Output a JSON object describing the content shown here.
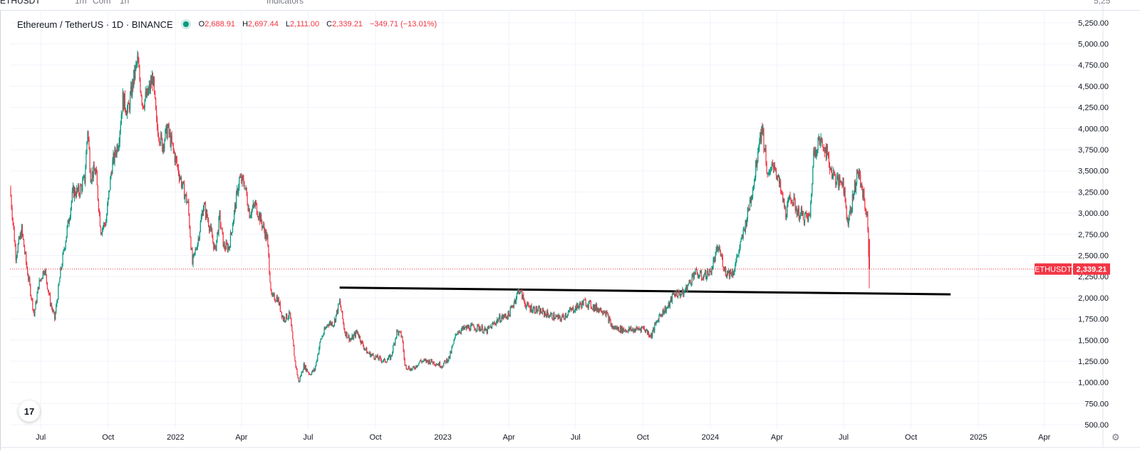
{
  "toolbar": {
    "symbol": "ETHUSDT",
    "interval": "1m",
    "compare": "Com",
    "tf": "1h",
    "indicators": "Indicators",
    "right_value": "5,25"
  },
  "legend": {
    "symbol_text": "Ethereum / TetherUS · 1D · BINANCE",
    "o_label": "O",
    "o_value": "2,688.91",
    "h_label": "H",
    "h_value": "2,697.44",
    "l_label": "L",
    "l_value": "2,111.00",
    "c_label": "C",
    "c_value": "2,339.21",
    "change": "−349.71 (−13.01%)"
  },
  "price_label": {
    "symbol": "ETHUSDT",
    "value": "2,339.21"
  },
  "colors": {
    "up": "#089981",
    "down": "#f23645",
    "grid": "#f0f3fa",
    "axis_text": "#131722",
    "trendline": "#000000"
  },
  "chart_data": {
    "type": "candlestick",
    "title": "Ethereum / TetherUS · 1D · BINANCE",
    "y_axis": {
      "ticks": [
        "5,250.00",
        "5,000.00",
        "4,750.00",
        "4,500.00",
        "4,250.00",
        "4,000.00",
        "3,750.00",
        "3,500.00",
        "3,250.00",
        "3,000.00",
        "2,750.00",
        "2,500.00",
        "2,250.00",
        "2,000.00",
        "1,750.00",
        "1,500.00",
        "1,250.00",
        "1,000.00",
        "750.00",
        "500.00"
      ],
      "tick_values": [
        5250,
        5000,
        4750,
        4500,
        4250,
        4000,
        3750,
        3500,
        3250,
        3000,
        2750,
        2500,
        2250,
        2000,
        1750,
        1500,
        1250,
        1000,
        750,
        500
      ],
      "range": [
        450,
        5400
      ],
      "position": "right"
    },
    "x_axis": {
      "labels": [
        "Jul",
        "Oct",
        "2022",
        "Apr",
        "Jul",
        "Oct",
        "2023",
        "Apr",
        "Jul",
        "Oct",
        "2024",
        "Apr",
        "Jul",
        "Oct",
        "2025",
        "Apr"
      ],
      "label_dates": [
        "2021-07-01",
        "2021-10-01",
        "2022-01-01",
        "2022-04-01",
        "2022-07-01",
        "2022-10-01",
        "2023-01-01",
        "2023-04-01",
        "2023-07-01",
        "2023-10-01",
        "2024-01-01",
        "2024-04-01",
        "2024-07-01",
        "2024-10-01",
        "2025-01-01",
        "2025-04-01"
      ],
      "range": [
        "2021-05-20",
        "2025-06-20"
      ]
    },
    "series": [
      {
        "interval": "daily",
        "path": [
          [
            "2021-05-20",
            3300
          ],
          [
            "2021-05-28",
            2500
          ],
          [
            "2021-06-05",
            2800
          ],
          [
            "2021-06-12",
            2350
          ],
          [
            "2021-06-22",
            1800
          ],
          [
            "2021-06-28",
            2150
          ],
          [
            "2021-07-06",
            2350
          ],
          [
            "2021-07-14",
            1950
          ],
          [
            "2021-07-20",
            1750
          ],
          [
            "2021-07-28",
            2300
          ],
          [
            "2021-08-05",
            2750
          ],
          [
            "2021-08-14",
            3250
          ],
          [
            "2021-08-22",
            3250
          ],
          [
            "2021-08-30",
            3400
          ],
          [
            "2021-09-03",
            4000
          ],
          [
            "2021-09-07",
            3450
          ],
          [
            "2021-09-14",
            3500
          ],
          [
            "2021-09-21",
            2800
          ],
          [
            "2021-09-28",
            2900
          ],
          [
            "2021-10-06",
            3550
          ],
          [
            "2021-10-15",
            3850
          ],
          [
            "2021-10-21",
            4350
          ],
          [
            "2021-10-28",
            4200
          ],
          [
            "2021-11-04",
            4550
          ],
          [
            "2021-11-10",
            4800
          ],
          [
            "2021-11-17",
            4300
          ],
          [
            "2021-11-24",
            4400
          ],
          [
            "2021-12-01",
            4600
          ],
          [
            "2021-12-06",
            4050
          ],
          [
            "2021-12-14",
            3800
          ],
          [
            "2021-12-21",
            4000
          ],
          [
            "2021-12-30",
            3700
          ],
          [
            "2022-01-05",
            3500
          ],
          [
            "2022-01-11",
            3300
          ],
          [
            "2022-01-18",
            3100
          ],
          [
            "2022-01-24",
            2400
          ],
          [
            "2022-02-01",
            2700
          ],
          [
            "2022-02-08",
            3100
          ],
          [
            "2022-02-15",
            2900
          ],
          [
            "2022-02-24",
            2550
          ],
          [
            "2022-03-02",
            2950
          ],
          [
            "2022-03-08",
            2600
          ],
          [
            "2022-03-15",
            2600
          ],
          [
            "2022-03-22",
            3000
          ],
          [
            "2022-03-29",
            3400
          ],
          [
            "2022-04-05",
            3350
          ],
          [
            "2022-04-12",
            3000
          ],
          [
            "2022-04-20",
            3100
          ],
          [
            "2022-04-28",
            2900
          ],
          [
            "2022-05-06",
            2700
          ],
          [
            "2022-05-12",
            2000
          ],
          [
            "2022-05-20",
            2000
          ],
          [
            "2022-05-28",
            1750
          ],
          [
            "2022-06-06",
            1800
          ],
          [
            "2022-06-13",
            1250
          ],
          [
            "2022-06-18",
            1000
          ],
          [
            "2022-06-25",
            1200
          ],
          [
            "2022-07-03",
            1100
          ],
          [
            "2022-07-10",
            1150
          ],
          [
            "2022-07-18",
            1500
          ],
          [
            "2022-07-28",
            1700
          ],
          [
            "2022-08-05",
            1700
          ],
          [
            "2022-08-13",
            1950
          ],
          [
            "2022-08-20",
            1600
          ],
          [
            "2022-08-28",
            1500
          ],
          [
            "2022-09-06",
            1600
          ],
          [
            "2022-09-13",
            1450
          ],
          [
            "2022-09-20",
            1350
          ],
          [
            "2022-10-01",
            1300
          ],
          [
            "2022-10-13",
            1250
          ],
          [
            "2022-10-22",
            1300
          ],
          [
            "2022-10-30",
            1600
          ],
          [
            "2022-11-06",
            1550
          ],
          [
            "2022-11-10",
            1200
          ],
          [
            "2022-11-20",
            1150
          ],
          [
            "2022-12-01",
            1250
          ],
          [
            "2022-12-15",
            1250
          ],
          [
            "2022-12-31",
            1200
          ],
          [
            "2023-01-10",
            1300
          ],
          [
            "2023-01-20",
            1600
          ],
          [
            "2023-02-05",
            1650
          ],
          [
            "2023-02-20",
            1650
          ],
          [
            "2023-03-01",
            1600
          ],
          [
            "2023-03-18",
            1750
          ],
          [
            "2023-04-01",
            1800
          ],
          [
            "2023-04-15",
            2100
          ],
          [
            "2023-04-25",
            1900
          ],
          [
            "2023-05-10",
            1850
          ],
          [
            "2023-05-25",
            1800
          ],
          [
            "2023-06-10",
            1750
          ],
          [
            "2023-06-25",
            1850
          ],
          [
            "2023-07-14",
            1950
          ],
          [
            "2023-07-28",
            1880
          ],
          [
            "2023-08-10",
            1850
          ],
          [
            "2023-08-20",
            1650
          ],
          [
            "2023-09-05",
            1620
          ],
          [
            "2023-09-20",
            1620
          ],
          [
            "2023-10-01",
            1650
          ],
          [
            "2023-10-12",
            1550
          ],
          [
            "2023-10-24",
            1800
          ],
          [
            "2023-11-05",
            1900
          ],
          [
            "2023-11-12",
            2050
          ],
          [
            "2023-11-25",
            2050
          ],
          [
            "2023-12-05",
            2200
          ],
          [
            "2023-12-10",
            2300
          ],
          [
            "2023-12-20",
            2250
          ],
          [
            "2024-01-01",
            2300
          ],
          [
            "2024-01-12",
            2600
          ],
          [
            "2024-01-22",
            2300
          ],
          [
            "2024-02-01",
            2300
          ],
          [
            "2024-02-12",
            2650
          ],
          [
            "2024-02-20",
            2950
          ],
          [
            "2024-03-01",
            3400
          ],
          [
            "2024-03-08",
            3900
          ],
          [
            "2024-03-12",
            4000
          ],
          [
            "2024-03-20",
            3400
          ],
          [
            "2024-03-28",
            3600
          ],
          [
            "2024-04-05",
            3300
          ],
          [
            "2024-04-13",
            3000
          ],
          [
            "2024-04-20",
            3200
          ],
          [
            "2024-04-30",
            3000
          ],
          [
            "2024-05-10",
            2950
          ],
          [
            "2024-05-16",
            2950
          ],
          [
            "2024-05-21",
            3700
          ],
          [
            "2024-05-27",
            3850
          ],
          [
            "2024-06-05",
            3800
          ],
          [
            "2024-06-14",
            3500
          ],
          [
            "2024-06-24",
            3350
          ],
          [
            "2024-06-30",
            3400
          ],
          [
            "2024-07-06",
            2900
          ],
          [
            "2024-07-12",
            3100
          ],
          [
            "2024-07-20",
            3500
          ],
          [
            "2024-07-27",
            3250
          ],
          [
            "2024-08-02",
            2950
          ],
          [
            "2024-08-05",
            2339
          ]
        ]
      }
    ],
    "last_candle": {
      "date": "2024-08-05",
      "open": 2688.91,
      "high": 2697.44,
      "low": 2111.0,
      "close": 2339.21
    },
    "trendline": {
      "start": [
        "2022-08-13",
        2120
      ],
      "end": [
        "2024-11-24",
        2040
      ]
    },
    "grid": true
  }
}
